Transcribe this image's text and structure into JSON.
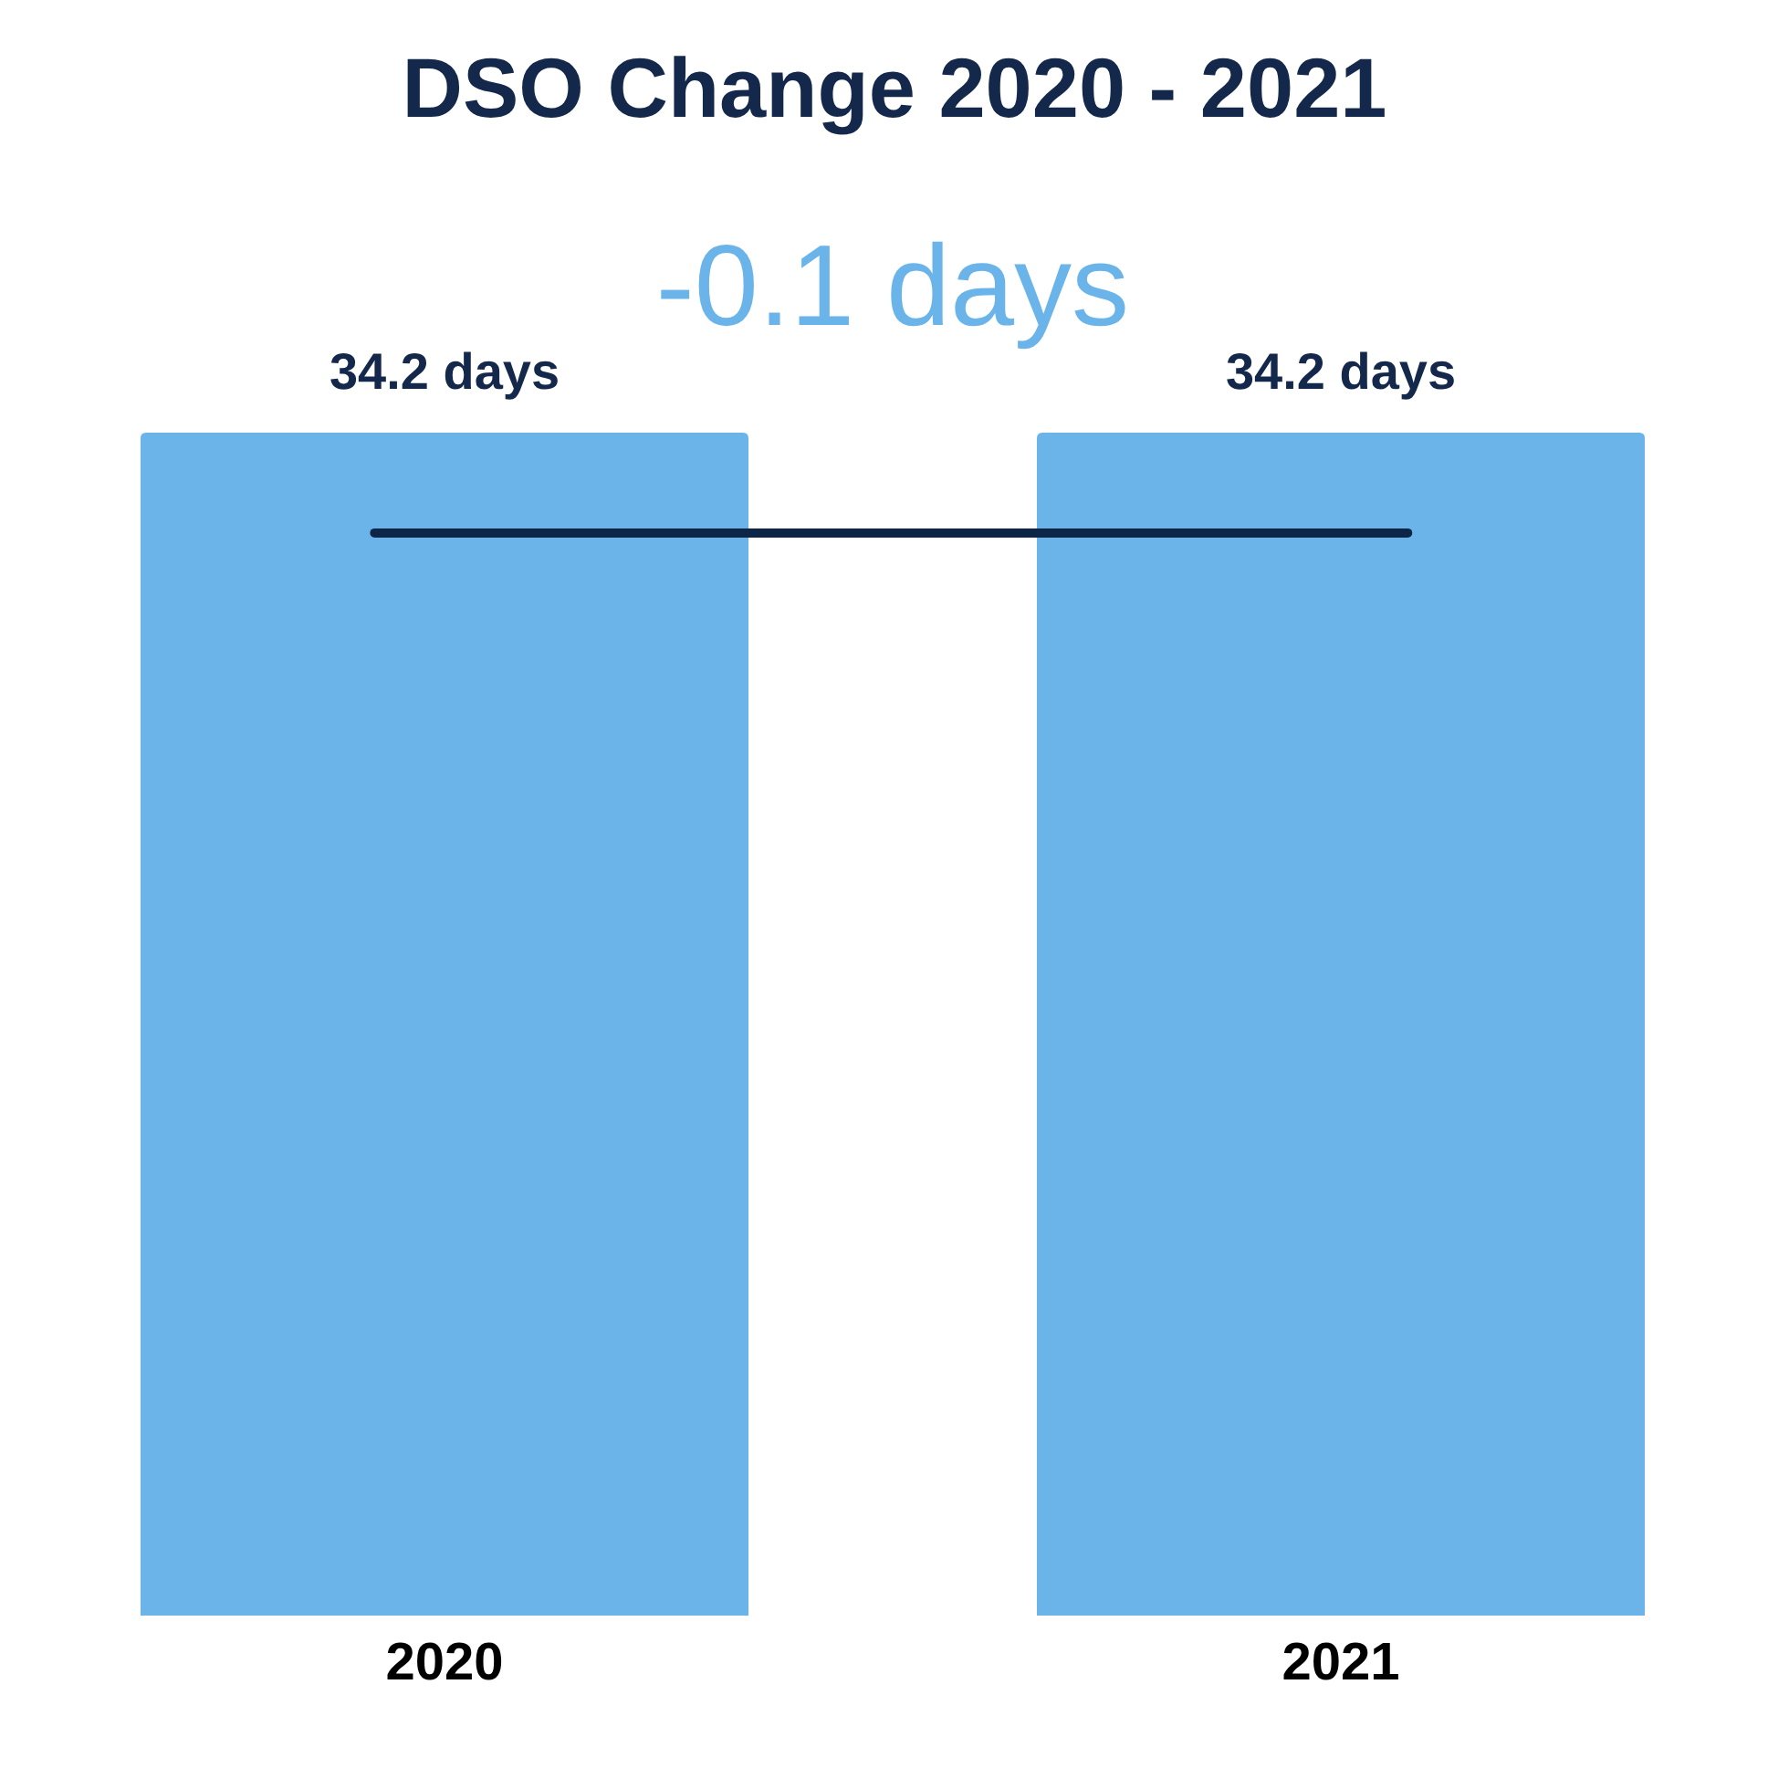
{
  "chart_data": {
    "type": "bar",
    "title": "DSO Change 2020 - 2021",
    "categories": [
      "2020",
      "2021"
    ],
    "series": [
      {
        "color": "#6ab4ea",
        "values": [
          34.2,
          34.2
        ],
        "value_labels": [
          "34.2 days",
          "34.2 days"
        ]
      }
    ],
    "ref_lines": [
      {
        "axis": "y",
        "value": 31.3,
        "label": "-0.1 days",
        "color": "#0d2547"
      }
    ],
    "tick_labels": "x"
  }
}
